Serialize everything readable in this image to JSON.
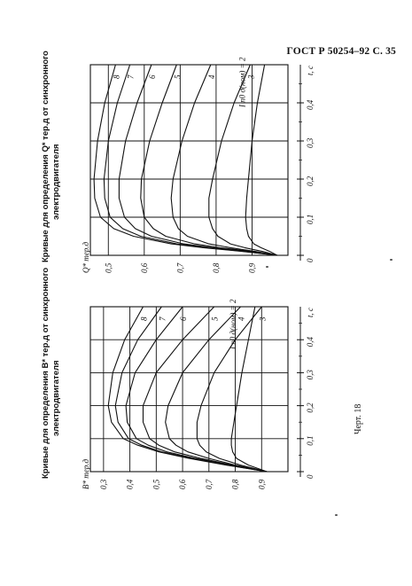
{
  "page_header": "ГОСТ Р 50254–92  С. 35",
  "figure_label": "Черт. 18",
  "chart_data": [
    {
      "type": "line",
      "caption_line1": "Кривые для определения Q* тер.д от синхронного",
      "caption_line2": "электродвигателя",
      "ylabel": "Q* тер.д",
      "xlabel": "t, c",
      "x_ticks": [
        0,
        0.1,
        0.2,
        0.3,
        0.4
      ],
      "x_tick_labels": [
        "0",
        "0,1",
        "0,2",
        "0,3",
        "0,4"
      ],
      "y_ticks": [
        0.5,
        0.6,
        0.7,
        0.8,
        0.9
      ],
      "y_tick_labels": [
        "0,5",
        "0,6",
        "0,7",
        "0,8",
        "0,9"
      ],
      "xlim": [
        0,
        0.5
      ],
      "ylim": [
        0.45,
        1.0
      ],
      "grid": true,
      "start_value": 0.97,
      "series_labels": [
        "I п0 д(ном) = 2",
        "3",
        "4",
        "5",
        "6",
        "7",
        "8"
      ],
      "series": [
        {
          "label": "I п0 д(ном) = 2",
          "x": [
            0,
            0.01,
            0.02,
            0.03,
            0.05,
            0.07,
            0.1,
            0.15,
            0.2,
            0.3,
            0.4,
            0.5
          ],
          "values": [
            0.97,
            0.95,
            0.925,
            0.905,
            0.89,
            0.885,
            0.882,
            0.885,
            0.89,
            0.9,
            0.915,
            0.935
          ]
        },
        {
          "label": "3",
          "x": [
            0,
            0.01,
            0.02,
            0.03,
            0.05,
            0.07,
            0.1,
            0.15,
            0.2,
            0.3,
            0.4,
            0.5
          ],
          "values": [
            0.97,
            0.93,
            0.88,
            0.84,
            0.805,
            0.79,
            0.78,
            0.78,
            0.79,
            0.815,
            0.85,
            0.895
          ]
        },
        {
          "label": "4",
          "x": [
            0,
            0.01,
            0.02,
            0.03,
            0.05,
            0.07,
            0.1,
            0.15,
            0.2,
            0.3,
            0.4,
            0.5
          ],
          "values": [
            0.97,
            0.91,
            0.84,
            0.78,
            0.72,
            0.695,
            0.68,
            0.675,
            0.68,
            0.705,
            0.74,
            0.785
          ]
        },
        {
          "label": "5",
          "x": [
            0,
            0.01,
            0.02,
            0.03,
            0.05,
            0.07,
            0.1,
            0.15,
            0.2,
            0.3,
            0.4,
            0.5
          ],
          "values": [
            0.97,
            0.9,
            0.81,
            0.74,
            0.66,
            0.625,
            0.6,
            0.59,
            0.592,
            0.615,
            0.65,
            0.69
          ]
        },
        {
          "label": "6",
          "x": [
            0,
            0.01,
            0.02,
            0.03,
            0.05,
            0.07,
            0.1,
            0.15,
            0.2,
            0.3,
            0.4,
            0.5
          ],
          "values": [
            0.97,
            0.89,
            0.79,
            0.71,
            0.62,
            0.575,
            0.545,
            0.53,
            0.53,
            0.548,
            0.58,
            0.62
          ]
        },
        {
          "label": "7",
          "x": [
            0,
            0.01,
            0.02,
            0.03,
            0.05,
            0.07,
            0.1,
            0.15,
            0.2,
            0.3,
            0.4,
            0.5
          ],
          "values": [
            0.97,
            0.88,
            0.775,
            0.69,
            0.59,
            0.54,
            0.505,
            0.49,
            0.488,
            0.5,
            0.525,
            0.56
          ]
        },
        {
          "label": "8",
          "x": [
            0,
            0.01,
            0.02,
            0.03,
            0.05,
            0.07,
            0.1,
            0.15,
            0.2,
            0.3,
            0.4,
            0.5
          ],
          "values": [
            0.97,
            0.875,
            0.765,
            0.675,
            0.57,
            0.515,
            0.478,
            0.462,
            0.46,
            0.47,
            0.49,
            0.52
          ]
        }
      ]
    },
    {
      "type": "line",
      "caption_line1": "Кривые для определения B* тер.д от синхронного",
      "caption_line2": "электродвигателя",
      "ylabel": "B* тер.д",
      "xlabel": "t, c",
      "x_ticks": [
        0,
        0.1,
        0.2,
        0.3,
        0.4
      ],
      "x_tick_labels": [
        "0",
        "0,1",
        "0,2",
        "0,3",
        "0,4"
      ],
      "y_ticks": [
        0.3,
        0.4,
        0.5,
        0.6,
        0.7,
        0.8,
        0.9
      ],
      "y_tick_labels": [
        "0,3",
        "0,4",
        "0,5",
        "0,6",
        "0,7",
        "0,8",
        "0,9"
      ],
      "xlim": [
        0,
        0.5
      ],
      "ylim": [
        0.25,
        1.0
      ],
      "grid": true,
      "start_value": 0.92,
      "series_labels": [
        "I п0 д(ном) = 2",
        "3",
        "4",
        "5",
        "6",
        "7",
        "8"
      ],
      "series": [
        {
          "label": "I п0 д(ном) = 2",
          "x": [
            0,
            0.02,
            0.04,
            0.06,
            0.08,
            0.1,
            0.15,
            0.2,
            0.3,
            0.4,
            0.5
          ],
          "values": [
            0.92,
            0.85,
            0.805,
            0.79,
            0.785,
            0.785,
            0.795,
            0.805,
            0.825,
            0.85,
            0.875
          ]
        },
        {
          "label": "3",
          "x": [
            0,
            0.02,
            0.04,
            0.06,
            0.08,
            0.1,
            0.15,
            0.2,
            0.3,
            0.4,
            0.5
          ],
          "values": [
            0.92,
            0.82,
            0.74,
            0.69,
            0.665,
            0.655,
            0.655,
            0.67,
            0.72,
            0.8,
            0.9
          ]
        },
        {
          "label": "4",
          "x": [
            0,
            0.02,
            0.04,
            0.06,
            0.08,
            0.1,
            0.15,
            0.2,
            0.3,
            0.4,
            0.5
          ],
          "values": [
            0.92,
            0.8,
            0.7,
            0.62,
            0.575,
            0.55,
            0.535,
            0.545,
            0.6,
            0.7,
            0.82
          ]
        },
        {
          "label": "5",
          "x": [
            0,
            0.02,
            0.04,
            0.06,
            0.08,
            0.1,
            0.15,
            0.2,
            0.3,
            0.4,
            0.5
          ],
          "values": [
            0.92,
            0.79,
            0.67,
            0.57,
            0.51,
            0.475,
            0.45,
            0.45,
            0.5,
            0.6,
            0.72
          ]
        },
        {
          "label": "6",
          "x": [
            0,
            0.02,
            0.04,
            0.06,
            0.08,
            0.1,
            0.15,
            0.2,
            0.3,
            0.4,
            0.5
          ],
          "values": [
            0.92,
            0.78,
            0.65,
            0.54,
            0.47,
            0.425,
            0.39,
            0.385,
            0.42,
            0.5,
            0.6
          ]
        },
        {
          "label": "7",
          "x": [
            0,
            0.02,
            0.04,
            0.06,
            0.08,
            0.1,
            0.15,
            0.2,
            0.3,
            0.4,
            0.5
          ],
          "values": [
            0.92,
            0.77,
            0.635,
            0.52,
            0.445,
            0.395,
            0.355,
            0.345,
            0.37,
            0.43,
            0.52
          ]
        },
        {
          "label": "8",
          "x": [
            0,
            0.02,
            0.04,
            0.06,
            0.08,
            0.1,
            0.15,
            0.2,
            0.3,
            0.4,
            0.5
          ],
          "values": [
            0.92,
            0.765,
            0.625,
            0.51,
            0.43,
            0.375,
            0.33,
            0.318,
            0.335,
            0.38,
            0.45
          ]
        }
      ]
    }
  ]
}
